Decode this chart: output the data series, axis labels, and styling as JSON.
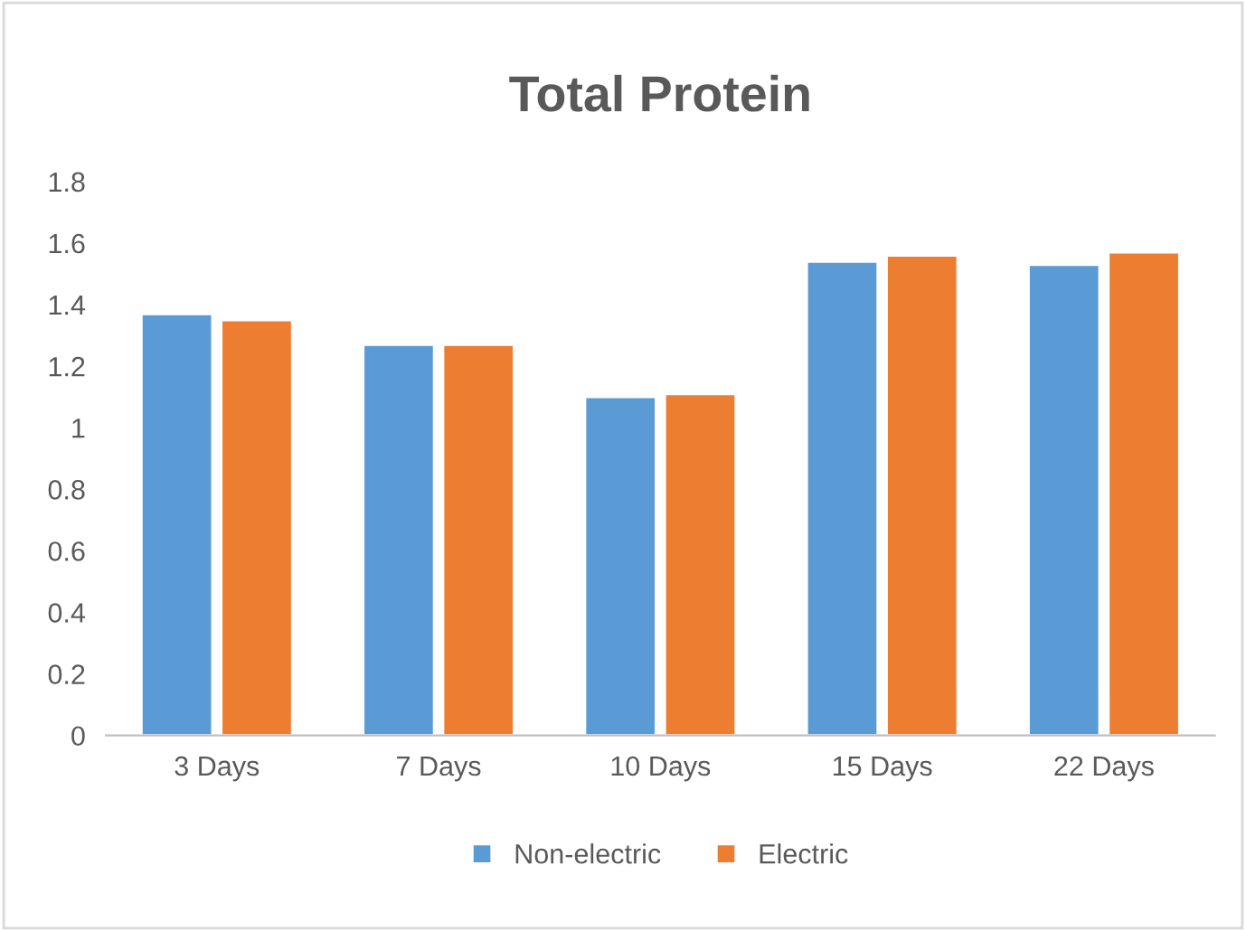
{
  "chart_data": {
    "type": "bar",
    "title": "Total Protein",
    "categories": [
      "3 Days",
      "7 Days",
      "10 Days",
      "15 Days",
      "22 Days"
    ],
    "series": [
      {
        "name": "Non-electric",
        "color": "#5b9bd5",
        "values": [
          1.37,
          1.27,
          1.1,
          1.54,
          1.53
        ]
      },
      {
        "name": "Electric",
        "color": "#ed7d31",
        "values": [
          1.35,
          1.27,
          1.11,
          1.56,
          1.57
        ]
      }
    ],
    "ylim": [
      0,
      1.8
    ],
    "yticks": [
      0,
      0.2,
      0.4,
      0.6,
      0.8,
      1,
      1.2,
      1.4,
      1.6,
      1.8
    ],
    "grid": false,
    "legend": "bottom"
  }
}
